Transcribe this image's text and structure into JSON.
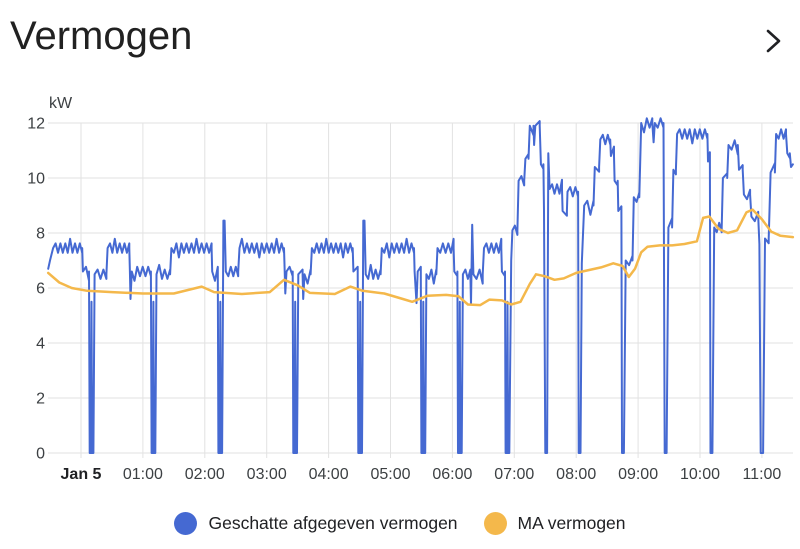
{
  "header": {
    "title": "Vermogen"
  },
  "chart_data": {
    "type": "line",
    "title": "Vermogen",
    "unit": "kW",
    "ylabel": "kW",
    "xlabel": "",
    "ylim": [
      0,
      12
    ],
    "grid": true,
    "legend_position": "bottom",
    "y_ticks": [
      0,
      2,
      4,
      6,
      8,
      10,
      12
    ],
    "x_ticks": [
      {
        "t": 0,
        "label": "Jan 5",
        "bold": true
      },
      {
        "t": 1,
        "label": "01:00"
      },
      {
        "t": 2,
        "label": "02:00"
      },
      {
        "t": 3,
        "label": "03:00"
      },
      {
        "t": 4,
        "label": "04:00"
      },
      {
        "t": 5,
        "label": "05:00"
      },
      {
        "t": 6,
        "label": "06:00"
      },
      {
        "t": 7,
        "label": "07:00"
      },
      {
        "t": 8,
        "label": "08:00"
      },
      {
        "t": 9,
        "label": "09:00"
      },
      {
        "t": 10,
        "label": "10:00"
      },
      {
        "t": 11,
        "label": "11:00"
      }
    ],
    "x_range_hours": [
      -0.53,
      11.5
    ],
    "series": [
      {
        "name": "Geschatte afgegeven vermogen",
        "color": "#4569d2",
        "width": 2,
        "points": [
          [
            -0.53,
            6.7,
            0
          ],
          [
            -0.5,
            7.0,
            0
          ],
          [
            -0.45,
            7.45,
            1
          ],
          [
            0.02,
            7.45,
            1
          ],
          [
            0.03,
            6.6,
            1
          ],
          [
            0.13,
            6.6,
            1
          ],
          [
            0.14,
            0,
            0
          ],
          [
            0.16,
            0,
            0
          ],
          [
            0.17,
            5.5,
            0
          ],
          [
            0.18,
            0,
            0
          ],
          [
            0.2,
            0,
            0
          ],
          [
            0.22,
            6.5,
            1
          ],
          [
            0.41,
            6.5,
            1
          ],
          [
            0.43,
            7.45,
            1
          ],
          [
            0.78,
            7.45,
            1
          ],
          [
            0.79,
            6.6,
            1
          ],
          [
            0.8,
            5.6,
            0
          ],
          [
            0.82,
            6.6,
            1
          ],
          [
            1.13,
            6.6,
            1
          ],
          [
            1.14,
            0,
            0
          ],
          [
            1.16,
            0,
            0
          ],
          [
            1.17,
            5.5,
            0
          ],
          [
            1.18,
            0,
            0
          ],
          [
            1.2,
            0,
            0
          ],
          [
            1.22,
            6.5,
            1
          ],
          [
            1.44,
            6.5,
            1
          ],
          [
            1.46,
            7.45,
            1
          ],
          [
            2.11,
            7.45,
            1
          ],
          [
            2.12,
            6.6,
            1
          ],
          [
            2.21,
            6.6,
            1
          ],
          [
            2.22,
            0,
            0
          ],
          [
            2.24,
            0,
            0
          ],
          [
            2.25,
            5.5,
            0
          ],
          [
            2.26,
            0,
            0
          ],
          [
            2.28,
            0,
            0
          ],
          [
            2.3,
            8.45,
            0
          ],
          [
            2.32,
            8.45,
            0
          ],
          [
            2.34,
            6.6,
            1
          ],
          [
            2.54,
            6.6,
            1
          ],
          [
            2.56,
            7.45,
            1
          ],
          [
            3.28,
            7.45,
            1
          ],
          [
            3.29,
            6.6,
            1
          ],
          [
            3.3,
            5.8,
            0
          ],
          [
            3.32,
            6.6,
            1
          ],
          [
            3.42,
            6.6,
            1
          ],
          [
            3.43,
            0,
            0
          ],
          [
            3.45,
            0,
            0
          ],
          [
            3.46,
            5.5,
            0
          ],
          [
            3.47,
            0,
            0
          ],
          [
            3.49,
            0,
            0
          ],
          [
            3.51,
            6.5,
            1
          ],
          [
            3.58,
            6.5,
            1
          ],
          [
            3.59,
            5.6,
            0
          ],
          [
            3.61,
            6.5,
            1
          ],
          [
            3.71,
            6.5,
            1
          ],
          [
            3.73,
            7.45,
            1
          ],
          [
            4.39,
            7.45,
            1
          ],
          [
            4.4,
            6.6,
            1
          ],
          [
            4.47,
            6.6,
            1
          ],
          [
            4.48,
            0,
            0
          ],
          [
            4.5,
            0,
            0
          ],
          [
            4.51,
            5.5,
            0
          ],
          [
            4.52,
            0,
            0
          ],
          [
            4.54,
            0,
            0
          ],
          [
            4.56,
            8.45,
            0
          ],
          [
            4.58,
            8.45,
            0
          ],
          [
            4.6,
            6.5,
            1
          ],
          [
            4.84,
            6.5,
            1
          ],
          [
            4.86,
            7.45,
            1
          ],
          [
            5.38,
            7.45,
            1
          ],
          [
            5.39,
            6.6,
            1
          ],
          [
            5.42,
            5.45,
            0
          ],
          [
            5.44,
            6.6,
            1
          ],
          [
            5.49,
            6.6,
            1
          ],
          [
            5.5,
            0,
            0
          ],
          [
            5.52,
            0,
            0
          ],
          [
            5.53,
            5.5,
            0
          ],
          [
            5.54,
            0,
            0
          ],
          [
            5.56,
            0,
            0
          ],
          [
            5.58,
            6.5,
            1
          ],
          [
            5.74,
            6.5,
            1
          ],
          [
            5.76,
            7.45,
            1
          ],
          [
            6.02,
            7.45,
            1
          ],
          [
            6.03,
            6.6,
            1
          ],
          [
            6.08,
            6.6,
            1
          ],
          [
            6.09,
            0,
            0
          ],
          [
            6.11,
            0,
            0
          ],
          [
            6.12,
            5.5,
            0
          ],
          [
            6.13,
            0,
            0
          ],
          [
            6.15,
            0,
            0
          ],
          [
            6.17,
            6.5,
            1
          ],
          [
            6.29,
            6.5,
            1
          ],
          [
            6.3,
            5.4,
            0
          ],
          [
            6.32,
            8.3,
            0
          ],
          [
            6.34,
            6.5,
            1
          ],
          [
            6.49,
            6.5,
            1
          ],
          [
            6.51,
            7.45,
            1
          ],
          [
            6.79,
            7.45,
            1
          ],
          [
            6.8,
            6.6,
            1
          ],
          [
            6.85,
            6.6,
            1
          ],
          [
            6.86,
            0,
            0
          ],
          [
            6.88,
            0,
            0
          ],
          [
            6.89,
            5.5,
            0
          ],
          [
            6.9,
            0,
            0
          ],
          [
            6.92,
            0,
            0
          ],
          [
            6.95,
            7.0,
            0
          ],
          [
            6.97,
            8.1,
            1
          ],
          [
            7.05,
            8.1,
            1
          ],
          [
            7.07,
            9.9,
            1
          ],
          [
            7.16,
            9.9,
            1
          ],
          [
            7.18,
            10.7,
            1
          ],
          [
            7.23,
            10.7,
            1
          ],
          [
            7.25,
            11.9,
            1
          ],
          [
            7.31,
            11.9,
            1
          ],
          [
            7.32,
            11.2,
            0
          ],
          [
            7.34,
            11.9,
            1
          ],
          [
            7.41,
            11.9,
            1
          ],
          [
            7.43,
            10.5,
            1
          ],
          [
            7.47,
            10.5,
            1
          ],
          [
            7.48,
            8.8,
            0
          ],
          [
            7.5,
            0,
            0
          ],
          [
            7.53,
            0,
            0
          ],
          [
            7.55,
            10.9,
            0
          ],
          [
            7.57,
            9.6,
            1
          ],
          [
            7.77,
            9.6,
            1
          ],
          [
            7.78,
            8.8,
            1
          ],
          [
            7.85,
            8.8,
            1
          ],
          [
            7.86,
            9.5,
            1
          ],
          [
            8.03,
            9.5,
            1
          ],
          [
            8.04,
            0,
            0
          ],
          [
            8.07,
            0,
            0
          ],
          [
            8.09,
            6.9,
            0
          ],
          [
            8.13,
            9.0,
            1
          ],
          [
            8.28,
            9.0,
            1
          ],
          [
            8.3,
            10.4,
            1
          ],
          [
            8.37,
            10.4,
            1
          ],
          [
            8.39,
            11.4,
            1
          ],
          [
            8.55,
            11.4,
            1
          ],
          [
            8.56,
            10.8,
            1
          ],
          [
            8.61,
            10.8,
            1
          ],
          [
            8.62,
            9.9,
            1
          ],
          [
            8.67,
            9.9,
            1
          ],
          [
            8.68,
            8.8,
            1
          ],
          [
            8.73,
            8.8,
            1
          ],
          [
            8.74,
            0,
            0
          ],
          [
            8.77,
            0,
            0
          ],
          [
            8.8,
            7.0,
            1
          ],
          [
            8.91,
            7.0,
            1
          ],
          [
            8.93,
            9.3,
            1
          ],
          [
            9.02,
            9.3,
            1
          ],
          [
            9.05,
            12.0,
            1
          ],
          [
            9.23,
            12.0,
            1
          ],
          [
            9.25,
            11.3,
            0
          ],
          [
            9.27,
            12.0,
            1
          ],
          [
            9.41,
            12.0,
            1
          ],
          [
            9.43,
            0,
            0
          ],
          [
            9.46,
            0,
            0
          ],
          [
            9.49,
            8.2,
            1
          ],
          [
            9.55,
            8.2,
            1
          ],
          [
            9.57,
            10.3,
            1
          ],
          [
            9.61,
            10.3,
            1
          ],
          [
            9.63,
            11.6,
            1
          ],
          [
            10.12,
            11.6,
            1
          ],
          [
            10.13,
            10.6,
            1
          ],
          [
            10.16,
            10.6,
            1
          ],
          [
            10.17,
            0,
            0
          ],
          [
            10.2,
            0,
            0
          ],
          [
            10.23,
            8.2,
            1
          ],
          [
            10.35,
            8.2,
            1
          ],
          [
            10.37,
            10.0,
            1
          ],
          [
            10.44,
            10.0,
            1
          ],
          [
            10.46,
            11.2,
            1
          ],
          [
            10.61,
            11.2,
            1
          ],
          [
            10.63,
            10.3,
            1
          ],
          [
            10.69,
            10.3,
            1
          ],
          [
            10.71,
            9.4,
            1
          ],
          [
            10.81,
            9.4,
            1
          ],
          [
            10.83,
            8.6,
            1
          ],
          [
            10.94,
            8.6,
            1
          ],
          [
            10.96,
            7.6,
            0
          ],
          [
            10.98,
            0,
            0
          ],
          [
            11.02,
            0,
            0
          ],
          [
            11.05,
            7.8,
            1
          ],
          [
            11.11,
            7.8,
            1
          ],
          [
            11.14,
            10.2,
            1
          ],
          [
            11.21,
            10.2,
            1
          ],
          [
            11.23,
            11.6,
            1
          ],
          [
            11.39,
            11.6,
            1
          ],
          [
            11.41,
            10.9,
            1
          ],
          [
            11.45,
            10.9,
            1
          ],
          [
            11.47,
            10.4,
            0
          ],
          [
            11.5,
            10.5,
            0
          ]
        ]
      },
      {
        "name": "MA vermogen",
        "color": "#f4b84b",
        "width": 2.5,
        "points": [
          [
            -0.53,
            6.55
          ],
          [
            -0.35,
            6.2
          ],
          [
            -0.15,
            6.0
          ],
          [
            0.1,
            5.9
          ],
          [
            0.5,
            5.85
          ],
          [
            1.0,
            5.8
          ],
          [
            1.5,
            5.8
          ],
          [
            1.95,
            6.05
          ],
          [
            2.15,
            5.85
          ],
          [
            2.6,
            5.78
          ],
          [
            3.05,
            5.85
          ],
          [
            3.28,
            6.3
          ],
          [
            3.5,
            6.1
          ],
          [
            3.7,
            5.82
          ],
          [
            4.1,
            5.78
          ],
          [
            4.35,
            6.05
          ],
          [
            4.55,
            5.9
          ],
          [
            4.9,
            5.8
          ],
          [
            5.2,
            5.6
          ],
          [
            5.35,
            5.5
          ],
          [
            5.6,
            5.72
          ],
          [
            5.9,
            5.75
          ],
          [
            6.1,
            5.7
          ],
          [
            6.25,
            5.4
          ],
          [
            6.45,
            5.38
          ],
          [
            6.6,
            5.58
          ],
          [
            6.8,
            5.55
          ],
          [
            6.95,
            5.4
          ],
          [
            7.1,
            5.5
          ],
          [
            7.25,
            6.15
          ],
          [
            7.35,
            6.5
          ],
          [
            7.5,
            6.42
          ],
          [
            7.65,
            6.3
          ],
          [
            7.8,
            6.35
          ],
          [
            8.0,
            6.55
          ],
          [
            8.2,
            6.65
          ],
          [
            8.4,
            6.75
          ],
          [
            8.6,
            6.9
          ],
          [
            8.75,
            6.8
          ],
          [
            8.85,
            6.4
          ],
          [
            8.95,
            6.7
          ],
          [
            9.05,
            7.3
          ],
          [
            9.15,
            7.5
          ],
          [
            9.35,
            7.55
          ],
          [
            9.55,
            7.55
          ],
          [
            9.75,
            7.6
          ],
          [
            9.95,
            7.7
          ],
          [
            10.05,
            8.55
          ],
          [
            10.15,
            8.6
          ],
          [
            10.3,
            8.15
          ],
          [
            10.45,
            8.0
          ],
          [
            10.6,
            8.1
          ],
          [
            10.75,
            8.75
          ],
          [
            10.85,
            8.85
          ],
          [
            11.0,
            8.5
          ],
          [
            11.15,
            8.05
          ],
          [
            11.3,
            7.9
          ],
          [
            11.5,
            7.85
          ]
        ]
      }
    ],
    "colors": {
      "grid": "#e2e2e2",
      "tick_text": "#3c4043",
      "title_text": "#212121"
    }
  }
}
